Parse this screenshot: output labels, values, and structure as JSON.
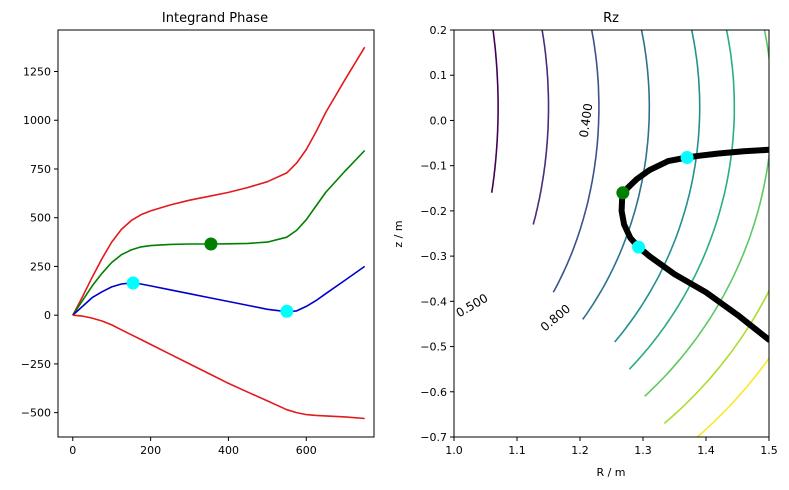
{
  "chart_data": [
    {
      "type": "line",
      "title": "Integrand Phase",
      "xlabel": "",
      "ylabel": "",
      "xlim": [
        -38,
        774
      ],
      "ylim": [
        -625,
        1463
      ],
      "xticks": [
        0,
        200,
        400,
        600
      ],
      "yticks": [
        -500,
        -250,
        0,
        250,
        500,
        750,
        1000,
        1250
      ],
      "grid": false,
      "series": [
        {
          "color": "#e31a1c",
          "x": [
            0,
            25,
            50,
            75,
            100,
            125,
            150,
            175,
            200,
            250,
            300,
            350,
            400,
            450,
            500,
            550,
            575,
            600,
            625,
            650,
            700,
            750
          ],
          "y": [
            0,
            95,
            195,
            290,
            375,
            440,
            485,
            515,
            535,
            565,
            590,
            610,
            630,
            655,
            685,
            730,
            780,
            850,
            940,
            1040,
            1210,
            1375
          ]
        },
        {
          "color": "#008000",
          "x": [
            0,
            25,
            50,
            75,
            100,
            125,
            150,
            175,
            200,
            250,
            300,
            350,
            400,
            450,
            500,
            550,
            575,
            600,
            625,
            650,
            700,
            750
          ],
          "y": [
            0,
            75,
            150,
            215,
            270,
            310,
            335,
            350,
            357,
            363,
            365,
            365,
            366,
            368,
            375,
            400,
            435,
            490,
            560,
            630,
            740,
            845
          ]
        },
        {
          "color": "#0000cd",
          "x": [
            0,
            25,
            50,
            75,
            100,
            125,
            150,
            175,
            200,
            250,
            300,
            350,
            400,
            450,
            500,
            550,
            575,
            600,
            625,
            650,
            700,
            750
          ],
          "y": [
            0,
            45,
            90,
            120,
            145,
            160,
            165,
            160,
            150,
            130,
            110,
            90,
            70,
            50,
            30,
            18,
            22,
            45,
            75,
            110,
            180,
            250
          ]
        },
        {
          "color": "#e31a1c",
          "x": [
            0,
            25,
            50,
            75,
            100,
            125,
            150,
            175,
            200,
            250,
            300,
            350,
            400,
            450,
            500,
            550,
            575,
            600,
            625,
            650,
            700,
            750
          ],
          "y": [
            0,
            -5,
            -15,
            -30,
            -50,
            -75,
            -100,
            -125,
            -150,
            -200,
            -250,
            -300,
            -350,
            -395,
            -440,
            -485,
            -500,
            -510,
            -514,
            -517,
            -522,
            -530
          ]
        }
      ],
      "markers": [
        {
          "color": "#00ffff",
          "x": 155,
          "y": 165
        },
        {
          "color": "#008000",
          "x": 355,
          "y": 365
        },
        {
          "color": "#00ffff",
          "x": 550,
          "y": 20
        }
      ]
    },
    {
      "type": "contour",
      "title": "Rz",
      "xlabel": "R / m",
      "ylabel": "z / m",
      "xlim": [
        1.0,
        1.5
      ],
      "ylim": [
        -0.7,
        0.2
      ],
      "xticks": [
        "1.0",
        "1.1",
        "1.2",
        "1.3",
        "1.4",
        "1.5"
      ],
      "yticks": [
        "-0.7",
        "-0.6",
        "-0.5",
        "-0.4",
        "-0.3",
        "-0.2",
        "-0.1",
        "0.0",
        "0.1",
        "0.2"
      ],
      "grid": false,
      "contour_labels": [
        {
          "text": "0.400",
          "color": "#3b528b"
        },
        {
          "text": "0.500",
          "color": "#3b528b"
        },
        {
          "text": "0.800",
          "color": "#6ece58"
        }
      ],
      "contours": [
        {
          "color": "#440154",
          "R0": 0.86,
          "a": 0.21,
          "b": 0.62,
          "zc": 0.03,
          "zmin": -0.16,
          "zmax": 0.2
        },
        {
          "color": "#472d7b",
          "R0": 0.86,
          "a": 0.29,
          "b": 0.65,
          "zc": 0.03,
          "zmin": -0.23,
          "zmax": 0.2
        },
        {
          "color": "#3b528b",
          "R0": 0.86,
          "a": 0.37,
          "b": 0.69,
          "zc": 0.03,
          "zmin": -0.38,
          "zmax": 0.2
        },
        {
          "color": "#2c728e",
          "R0": 0.86,
          "a": 0.45,
          "b": 0.73,
          "zc": 0.03,
          "zmin": -0.44,
          "zmax": 0.2
        },
        {
          "color": "#21918c",
          "R0": 0.86,
          "a": 0.53,
          "b": 0.78,
          "zc": 0.03,
          "zmin": -0.49,
          "zmax": 0.2
        },
        {
          "color": "#28ae80",
          "R0": 0.86,
          "a": 0.585,
          "b": 0.83,
          "zc": 0.03,
          "zmin": -0.55,
          "zmax": 0.2
        },
        {
          "color": "#5ec962",
          "R0": 0.86,
          "a": 0.645,
          "b": 0.88,
          "zc": 0.03,
          "zmin": -0.61,
          "zmax": 0.2
        },
        {
          "color": "#addc30",
          "R0": 0.86,
          "a": 0.71,
          "b": 0.94,
          "zc": 0.03,
          "zmin": -0.67,
          "zmax": 0.2
        },
        {
          "color": "#fde725",
          "R0": 0.86,
          "a": 0.77,
          "b": 1.0,
          "zc": 0.03,
          "zmin": -0.7,
          "zmax": 0.2
        }
      ],
      "trajectory": {
        "color": "#000000",
        "R": [
          1.5,
          1.46,
          1.42,
          1.39,
          1.37,
          1.34,
          1.31,
          1.29,
          1.275,
          1.267,
          1.266,
          1.27,
          1.28,
          1.293,
          1.31,
          1.35,
          1.4,
          1.45,
          1.5
        ],
        "z": [
          -0.065,
          -0.068,
          -0.073,
          -0.078,
          -0.082,
          -0.09,
          -0.11,
          -0.13,
          -0.15,
          -0.17,
          -0.2,
          -0.23,
          -0.26,
          -0.28,
          -0.3,
          -0.34,
          -0.38,
          -0.43,
          -0.485
        ]
      },
      "markers": [
        {
          "color": "#008000",
          "R": 1.268,
          "z": -0.16
        },
        {
          "color": "#00ffff",
          "R": 1.37,
          "z": -0.082
        },
        {
          "color": "#00ffff",
          "R": 1.293,
          "z": -0.28
        }
      ]
    }
  ]
}
